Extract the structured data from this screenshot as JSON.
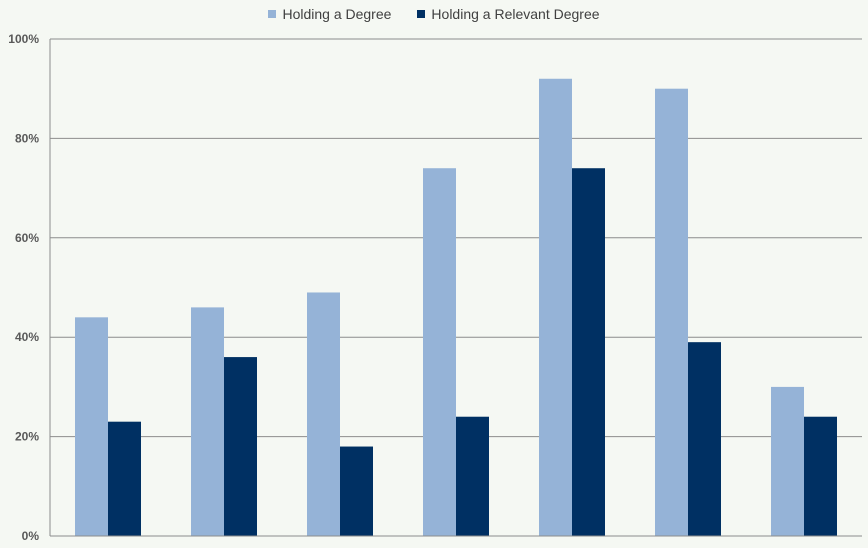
{
  "chart_data": {
    "type": "bar",
    "categories": [
      "",
      "",
      "",
      "",
      "",
      "",
      ""
    ],
    "series": [
      {
        "name": "Holding a Degree",
        "color": "#95b3d7",
        "values": [
          44,
          46,
          49,
          74,
          92,
          90,
          30
        ]
      },
      {
        "name": "Holding a Relevant Degree",
        "color": "#003063",
        "values": [
          23,
          36,
          18,
          24,
          74,
          39,
          24
        ]
      }
    ],
    "ylim": [
      0,
      100
    ],
    "yticks": [
      0,
      20,
      40,
      60,
      80,
      100
    ],
    "ytick_labels": [
      "0%",
      "20%",
      "40%",
      "60%",
      "80%",
      "100%"
    ],
    "grid": true,
    "legend_position": "top"
  }
}
